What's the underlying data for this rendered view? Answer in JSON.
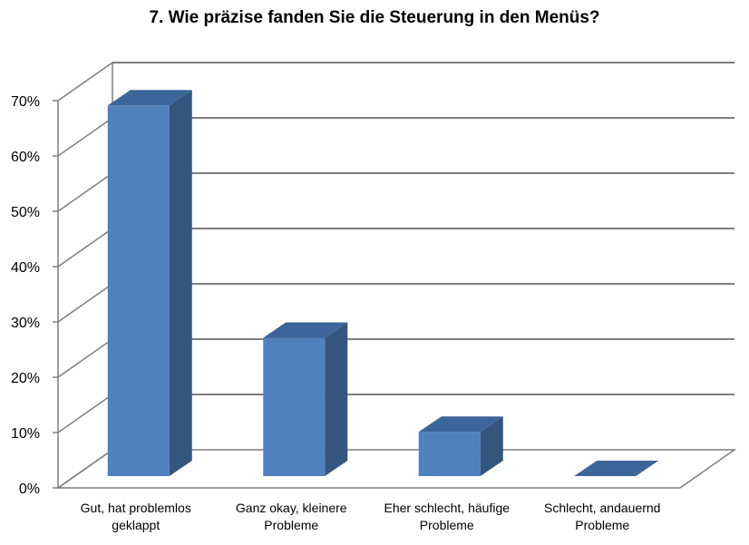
{
  "chart_data": {
    "type": "bar",
    "title": "7. Wie präzise fanden Sie die Steuerung in den Menüs?",
    "categories": [
      "Gut, hat problemlos geklappt",
      "Ganz okay, kleinere Probleme",
      "Eher schlecht, häufige Probleme",
      "Schlecht, andauernd Probleme"
    ],
    "values": [
      67,
      25,
      8,
      0
    ],
    "ylim": [
      0,
      70
    ],
    "yticks": [
      "0%",
      "10%",
      "20%",
      "30%",
      "40%",
      "50%",
      "60%",
      "70%"
    ],
    "xlabel": "",
    "ylabel": "",
    "grid": true,
    "legend": "none",
    "style": "3d-column"
  },
  "colors": {
    "bar_front": "#4f81bd",
    "bar_side": "#33557e",
    "bar_top": "#3c659a",
    "grid": "#7f7f7f",
    "text": "#000000"
  }
}
